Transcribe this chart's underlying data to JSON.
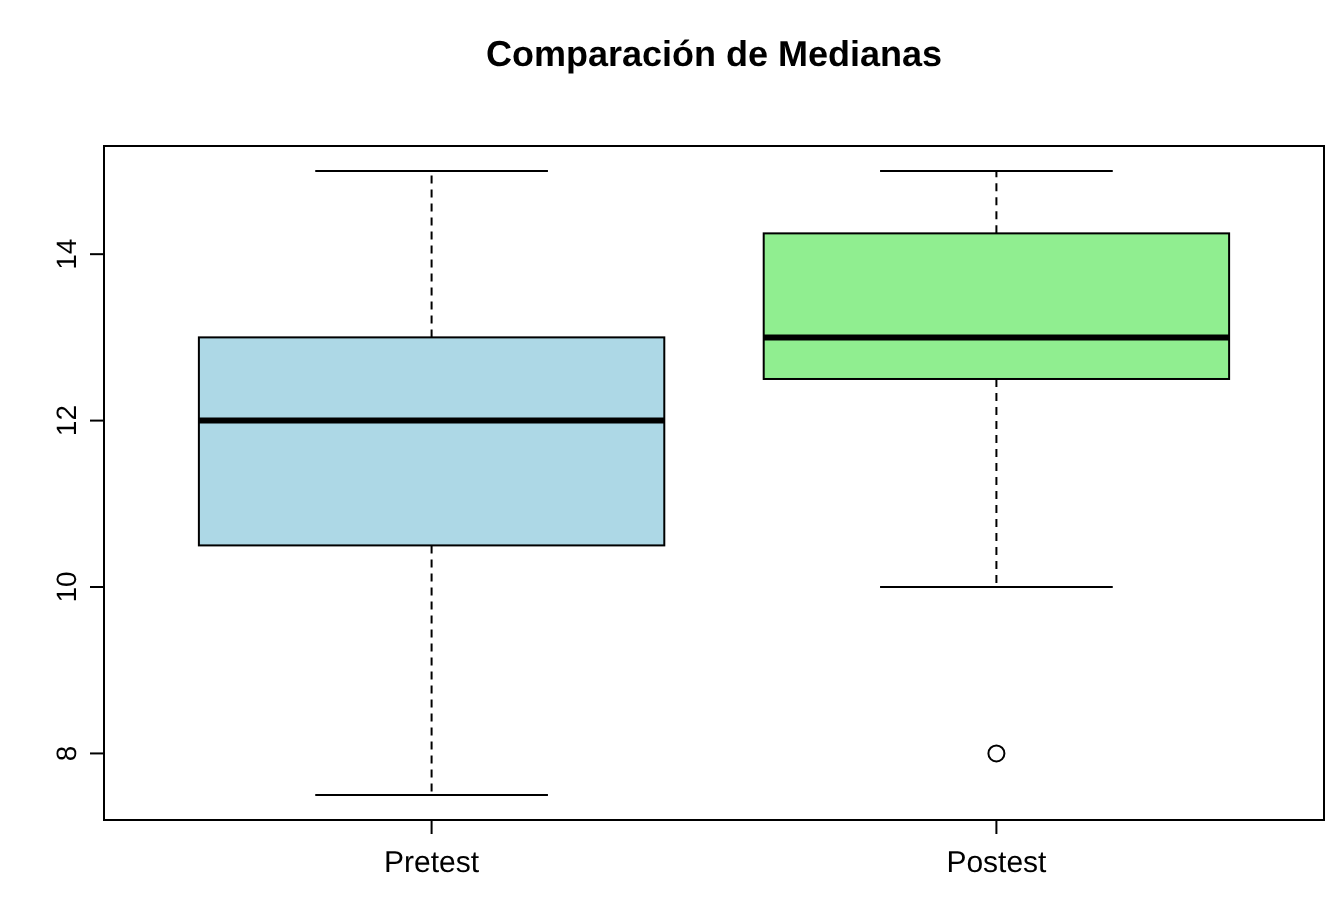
{
  "chart_data": {
    "type": "box",
    "title": "Comparación de Medianas",
    "categories": [
      "Pretest",
      "Postest"
    ],
    "boxes": [
      {
        "low": 7.5,
        "q1": 10.5,
        "median": 12,
        "q3": 13,
        "high": 15
      },
      {
        "low": 10,
        "q1": 12.5,
        "median": 13,
        "q3": 14.25,
        "high": 15,
        "outliers": [
          8
        ]
      }
    ],
    "colors": [
      "#add8e6",
      "#90ee90"
    ],
    "ylim": [
      7.2,
      15.3
    ],
    "yticks": [
      8,
      10,
      12,
      14
    ]
  }
}
